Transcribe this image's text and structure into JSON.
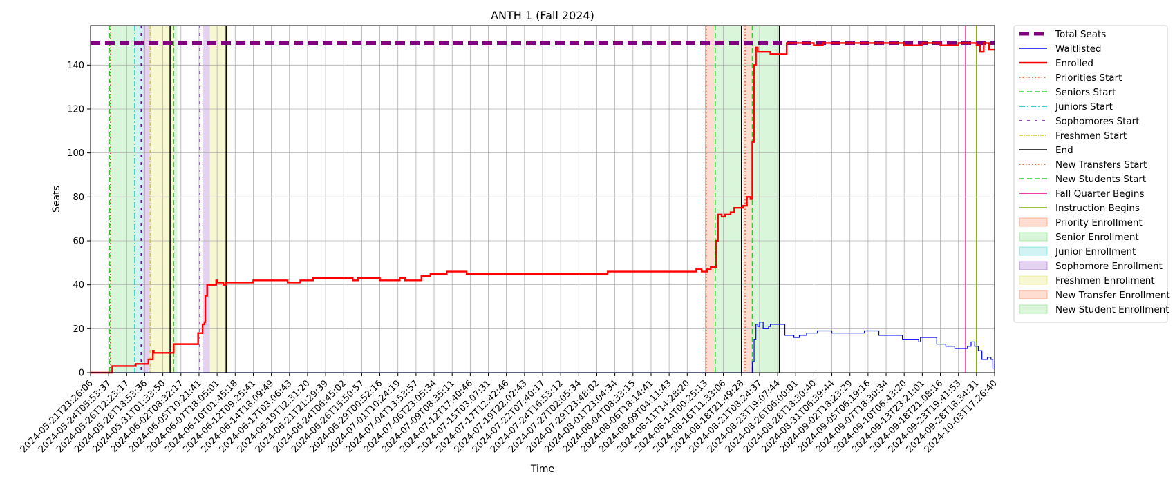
{
  "chart_data": {
    "type": "line",
    "title": "ANTH 1 (Fall 2024)",
    "xlabel": "Time",
    "ylabel": "Seats",
    "ylim": [
      0,
      158
    ],
    "y_ticks": [
      0,
      20,
      40,
      60,
      80,
      100,
      120,
      140
    ],
    "x_range": [
      "2024-05-21T23:26:06",
      "2024-10-03T17:26:40"
    ],
    "x_tick_labels": [
      "2024-05-21T23:26:06",
      "2024-05-24T05:53:37",
      "2024-05-26T12:23:17",
      "2024-05-28T18:53:36",
      "2024-05-31T01:33:50",
      "2024-06-02T08:32:17",
      "2024-06-05T10:21:41",
      "2024-06-07T18:05:01",
      "2024-06-10T01:45:18",
      "2024-06-12T09:25:41",
      "2024-06-14T18:09:49",
      "2024-06-17T03:06:43",
      "2024-06-19T12:31:20",
      "2024-06-21T21:29:39",
      "2024-06-24T06:45:02",
      "2024-06-26T15:50:57",
      "2024-06-29T00:52:16",
      "2024-07-01T10:24:19",
      "2024-07-04T13:53:57",
      "2024-07-06T23:05:34",
      "2024-07-09T08:35:11",
      "2024-07-12T17:40:46",
      "2024-07-15T03:07:31",
      "2024-07-17T12:42:46",
      "2024-07-19T22:02:43",
      "2024-07-22T07:40:17",
      "2024-07-24T16:53:12",
      "2024-07-27T02:05:34",
      "2024-07-29T23:48:02",
      "2024-08-01T23:04:34",
      "2024-08-04T08:33:15",
      "2024-08-06T18:14:41",
      "2024-08-09T04:11:43",
      "2024-08-11T14:28:20",
      "2024-08-14T00:25:13",
      "2024-08-16T11:33:06",
      "2024-08-18T21:49:28",
      "2024-08-21T08:24:37",
      "2024-08-23T19:07:44",
      "2024-08-26T06:00:01",
      "2024-08-28T18:30:40",
      "2024-08-31T06:39:44",
      "2024-09-02T18:23:29",
      "2024-09-05T06:19:16",
      "2024-09-07T18:30:34",
      "2024-09-10T06:43:20",
      "2024-09-13T23:21:01",
      "2024-09-18T21:08:16",
      "2024-09-23T19:41:53",
      "2024-09-28T18:34:31",
      "2024-10-03T17:26:40"
    ],
    "grid": true,
    "legend_position": "outside-right",
    "colors": {
      "total": "#800080",
      "waitlisted": "#0000ff",
      "enrolled": "#ff0000",
      "priority": "#ff4500",
      "senior": "#32cd32",
      "junior": "#00bfbf",
      "sophomore": "#6a0dad",
      "freshman": "#d4d400",
      "end": "#000000",
      "fall_quarter": "#e6008a",
      "instruction": "#80b000"
    },
    "legend": [
      {
        "key": "total",
        "label": "Total Seats",
        "style": "thick-dash"
      },
      {
        "key": "waitlisted",
        "label": "Waitlisted",
        "style": "line"
      },
      {
        "key": "enrolled",
        "label": "Enrolled",
        "style": "bold-line"
      },
      {
        "key": "priority",
        "label": "Priorities Start",
        "style": "dotted"
      },
      {
        "key": "senior",
        "label": "Seniors Start",
        "style": "dashed"
      },
      {
        "key": "junior",
        "label": "Juniors Start",
        "style": "dashdot"
      },
      {
        "key": "sophomore",
        "label": "Sophomores Start",
        "style": "sparse-dash"
      },
      {
        "key": "freshman",
        "label": "Freshmen Start",
        "style": "dashdot-thin"
      },
      {
        "key": "end",
        "label": "End",
        "style": "line"
      },
      {
        "key": "priority",
        "label": "New Transfers Start",
        "style": "dotted"
      },
      {
        "key": "senior",
        "label": "New Students Start",
        "style": "dashed"
      },
      {
        "key": "fall_quarter",
        "label": "Fall Quarter Begins",
        "style": "line"
      },
      {
        "key": "instruction",
        "label": "Instruction Begins",
        "style": "line"
      },
      {
        "key": "priority",
        "label": "Priority Enrollment",
        "style": "patch"
      },
      {
        "key": "senior",
        "label": "Senior Enrollment",
        "style": "patch"
      },
      {
        "key": "junior",
        "label": "Junior Enrollment",
        "style": "patch"
      },
      {
        "key": "sophomore",
        "label": "Sophomore Enrollment",
        "style": "patch"
      },
      {
        "key": "freshman",
        "label": "Freshmen Enrollment",
        "style": "patch"
      },
      {
        "key": "priority",
        "label": "New Transfer Enrollment",
        "style": "patch"
      },
      {
        "key": "senior",
        "label": "New Student Enrollment",
        "style": "patch"
      }
    ],
    "total_seats": 150,
    "periods": [
      {
        "name": "senior-enrollment",
        "key": "senior",
        "start": 1.1,
        "end": 2.5
      },
      {
        "name": "junior-enrollment",
        "key": "junior",
        "start": 2.5,
        "end": 2.9
      },
      {
        "name": "sophomore-enrollment",
        "key": "sophomore",
        "start": 2.9,
        "end": 3.3
      },
      {
        "name": "freshman-enrollment",
        "key": "freshman",
        "start": 3.3,
        "end": 4.6
      },
      {
        "name": "senior-enrollment-2",
        "key": "senior",
        "start": 4.6,
        "end": 4.8
      },
      {
        "name": "sophomore-enrollment-2",
        "key": "sophomore",
        "start": 6.2,
        "end": 6.6
      },
      {
        "name": "freshman-enrollment-2",
        "key": "freshman",
        "start": 6.6,
        "end": 7.6
      },
      {
        "name": "new-transfer-enrollment",
        "key": "priority",
        "start": 34.0,
        "end": 34.5
      },
      {
        "name": "new-student-enrollment",
        "key": "senior",
        "start": 34.5,
        "end": 36.0
      },
      {
        "name": "new-transfer-enrollment-2",
        "key": "priority",
        "start": 36.1,
        "end": 36.6
      },
      {
        "name": "new-student-enrollment-2",
        "key": "senior",
        "start": 36.6,
        "end": 38.1
      }
    ],
    "markers": [
      {
        "name": "seniors-start",
        "key": "senior",
        "x": 1.05,
        "style": "dashed"
      },
      {
        "name": "priorities-start",
        "key": "priority",
        "x": 1.1,
        "style": "dotted"
      },
      {
        "name": "juniors-start",
        "key": "junior",
        "x": 2.45,
        "style": "dashdot"
      },
      {
        "name": "sophomores-start",
        "key": "sophomore",
        "x": 2.8,
        "style": "sparse-dash"
      },
      {
        "name": "freshmen-start",
        "key": "freshman",
        "x": 3.3,
        "style": "dashdot-thin"
      },
      {
        "name": "end-1",
        "key": "end",
        "x": 4.4,
        "style": "line"
      },
      {
        "name": "seniors-start-2",
        "key": "senior",
        "x": 4.6,
        "style": "dashed"
      },
      {
        "name": "sophomores-start-2",
        "key": "sophomore",
        "x": 6.05,
        "style": "sparse-dash"
      },
      {
        "name": "end-2",
        "key": "end",
        "x": 7.5,
        "style": "line"
      },
      {
        "name": "new-transfers-start",
        "key": "priority",
        "x": 34.05,
        "style": "dotted"
      },
      {
        "name": "new-students-start",
        "key": "senior",
        "x": 34.55,
        "style": "dashed"
      },
      {
        "name": "end-3",
        "key": "end",
        "x": 36.0,
        "style": "line"
      },
      {
        "name": "new-transfers-start-2",
        "key": "priority",
        "x": 36.2,
        "style": "dotted"
      },
      {
        "name": "new-students-start-2",
        "key": "senior",
        "x": 36.6,
        "style": "dashed"
      },
      {
        "name": "end-4",
        "key": "end",
        "x": 38.1,
        "style": "line"
      },
      {
        "name": "fall-quarter-begins",
        "key": "fall_quarter",
        "x": 48.4,
        "style": "line"
      },
      {
        "name": "instruction-begins",
        "key": "instruction",
        "x": 49.0,
        "style": "line"
      }
    ],
    "series": [
      {
        "name": "Enrolled",
        "key": "enrolled",
        "points": [
          [
            0,
            0
          ],
          [
            1.1,
            0
          ],
          [
            1.2,
            3
          ],
          [
            2.4,
            3
          ],
          [
            2.5,
            4
          ],
          [
            3.0,
            4
          ],
          [
            3.2,
            6
          ],
          [
            3.4,
            6
          ],
          [
            3.45,
            10
          ],
          [
            3.5,
            9
          ],
          [
            4.5,
            9
          ],
          [
            4.6,
            13
          ],
          [
            5.9,
            13
          ],
          [
            5.95,
            18
          ],
          [
            6.1,
            18
          ],
          [
            6.2,
            22
          ],
          [
            6.3,
            23
          ],
          [
            6.35,
            35
          ],
          [
            6.45,
            40
          ],
          [
            6.9,
            40
          ],
          [
            6.95,
            42
          ],
          [
            7.0,
            41
          ],
          [
            7.3,
            41
          ],
          [
            7.35,
            40
          ],
          [
            7.5,
            41
          ],
          [
            8.9,
            41
          ],
          [
            9.0,
            42
          ],
          [
            10.8,
            42
          ],
          [
            10.9,
            41
          ],
          [
            11.5,
            41
          ],
          [
            11.6,
            42
          ],
          [
            12.2,
            42
          ],
          [
            12.3,
            43
          ],
          [
            14.4,
            43
          ],
          [
            14.5,
            42
          ],
          [
            14.8,
            43
          ],
          [
            16.0,
            42
          ],
          [
            17.0,
            42
          ],
          [
            17.1,
            43
          ],
          [
            17.4,
            42
          ],
          [
            18.2,
            42
          ],
          [
            18.3,
            44
          ],
          [
            18.7,
            44
          ],
          [
            18.8,
            45
          ],
          [
            19.6,
            45
          ],
          [
            19.7,
            46
          ],
          [
            20.7,
            46
          ],
          [
            20.8,
            45
          ],
          [
            28.5,
            45
          ],
          [
            28.6,
            46
          ],
          [
            33.4,
            46
          ],
          [
            33.5,
            47
          ],
          [
            33.8,
            46
          ],
          [
            34.1,
            47
          ],
          [
            34.3,
            48
          ],
          [
            34.5,
            48
          ],
          [
            34.6,
            60
          ],
          [
            34.7,
            72
          ],
          [
            34.9,
            71
          ],
          [
            35.1,
            72
          ],
          [
            35.4,
            73
          ],
          [
            35.6,
            75
          ],
          [
            36.0,
            75
          ],
          [
            36.1,
            76
          ],
          [
            36.3,
            80
          ],
          [
            36.5,
            79
          ],
          [
            36.6,
            105
          ],
          [
            36.7,
            140
          ],
          [
            36.8,
            148
          ],
          [
            36.9,
            146
          ],
          [
            37.5,
            146
          ],
          [
            37.6,
            145
          ],
          [
            38.4,
            145
          ],
          [
            38.5,
            150
          ],
          [
            40.0,
            149
          ],
          [
            40.5,
            150
          ],
          [
            45.0,
            149
          ],
          [
            46.0,
            150
          ],
          [
            47.0,
            149
          ],
          [
            48.0,
            150
          ],
          [
            49.0,
            149
          ],
          [
            49.2,
            146
          ],
          [
            49.4,
            150
          ],
          [
            49.7,
            147
          ],
          [
            50,
            147
          ]
        ]
      },
      {
        "name": "Waitlisted",
        "key": "waitlisted",
        "points": [
          [
            0,
            0
          ],
          [
            36.3,
            0
          ],
          [
            36.6,
            5
          ],
          [
            36.7,
            15
          ],
          [
            36.8,
            22
          ],
          [
            36.9,
            21
          ],
          [
            37.0,
            23
          ],
          [
            37.2,
            20
          ],
          [
            37.5,
            21
          ],
          [
            37.6,
            22
          ],
          [
            38.3,
            22
          ],
          [
            38.4,
            17
          ],
          [
            38.9,
            16
          ],
          [
            39.2,
            17
          ],
          [
            39.6,
            18
          ],
          [
            40.2,
            19
          ],
          [
            41.0,
            18
          ],
          [
            42.8,
            19
          ],
          [
            43.6,
            17
          ],
          [
            44.9,
            15
          ],
          [
            45.8,
            14
          ],
          [
            45.9,
            16
          ],
          [
            46.8,
            13
          ],
          [
            47.3,
            12
          ],
          [
            47.8,
            11
          ],
          [
            48.5,
            12
          ],
          [
            48.7,
            14
          ],
          [
            48.9,
            12
          ],
          [
            49.1,
            10
          ],
          [
            49.3,
            6
          ],
          [
            49.6,
            7
          ],
          [
            49.8,
            6
          ],
          [
            49.9,
            2
          ],
          [
            50,
            4
          ]
        ]
      }
    ]
  }
}
